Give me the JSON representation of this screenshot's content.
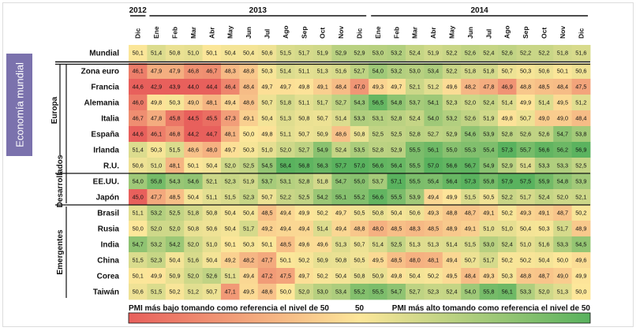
{
  "side_label": "Economía mundial",
  "chart_data": {
    "type": "heatmap",
    "title": "",
    "years": [
      {
        "label": "2012",
        "start": 0,
        "end": 0
      },
      {
        "label": "2013",
        "start": 1,
        "end": 12
      },
      {
        "label": "2014",
        "start": 13,
        "end": 24
      }
    ],
    "months": [
      "Dic",
      "Ene",
      "Feb",
      "Mar",
      "Abr",
      "May",
      "Jun",
      "Jul",
      "Ago",
      "Sep",
      "Oct",
      "Nov",
      "Dic",
      "Ene",
      "Feb",
      "Mar",
      "Abr",
      "May",
      "Jun",
      "Jul",
      "Ago",
      "Sep",
      "Oct",
      "Nov",
      "Dic"
    ],
    "groups": [
      {
        "label": "Europa",
        "rows": [
          1,
          6
        ]
      },
      {
        "label": "Desarrollados",
        "rows": [
          1,
          9
        ]
      },
      {
        "label": "Emergentes",
        "rows": [
          10,
          15
        ]
      }
    ],
    "rows": [
      {
        "name": "Mundial",
        "values": [
          "50,1",
          "51,4",
          "50,8",
          "51,0",
          "50,1",
          "50,4",
          "50,4",
          "50,6",
          "51,5",
          "51,7",
          "51,9",
          "52,9",
          "52,9",
          "53,0",
          "53,2",
          "52,4",
          "51,9",
          "52,2",
          "52,6",
          "52,4",
          "52,6",
          "52,2",
          "52,2",
          "51,8",
          "51,6"
        ]
      },
      {
        "name": "Zona euro",
        "values": [
          "46,1",
          "47,9",
          "47,9",
          "46,8",
          "46,7",
          "48,3",
          "48,8",
          "50,3",
          "51,4",
          "51,1",
          "51,3",
          "51,6",
          "52,7",
          "54,0",
          "53,2",
          "53,0",
          "53,4",
          "52,2",
          "51,8",
          "51,8",
          "50,7",
          "50,3",
          "50,6",
          "50,1",
          "50,6"
        ]
      },
      {
        "name": "Francia",
        "values": [
          "44,6",
          "42,9",
          "43,9",
          "44,0",
          "44,4",
          "46,4",
          "48,4",
          "49,7",
          "49,7",
          "49,8",
          "49,1",
          "48,4",
          "47,0",
          "49,3",
          "49,7",
          "52,1",
          "51,2",
          "49,6",
          "48,2",
          "47,8",
          "46,9",
          "48,8",
          "48,5",
          "48,4",
          "47,5"
        ]
      },
      {
        "name": "Alemania",
        "values": [
          "46,0",
          "49,8",
          "50,3",
          "49,0",
          "48,1",
          "49,4",
          "48,6",
          "50,7",
          "51,8",
          "51,1",
          "51,7",
          "52,7",
          "54,3",
          "56,5",
          "54,8",
          "53,7",
          "54,1",
          "52,3",
          "52,0",
          "52,4",
          "51,4",
          "49,9",
          "51,4",
          "49,5",
          "51,2"
        ]
      },
      {
        "name": "Italia",
        "values": [
          "46,7",
          "47,8",
          "45,8",
          "44,5",
          "45,5",
          "47,3",
          "49,1",
          "50,4",
          "51,3",
          "50,8",
          "50,7",
          "51,4",
          "53,3",
          "53,1",
          "52,8",
          "52,4",
          "54,0",
          "53,2",
          "52,6",
          "51,9",
          "49,8",
          "50,7",
          "49,0",
          "49,0",
          "48,4"
        ]
      },
      {
        "name": "España",
        "values": [
          "44,6",
          "46,1",
          "46,8",
          "44,2",
          "44,7",
          "48,1",
          "50,0",
          "49,8",
          "51,1",
          "50,7",
          "50,9",
          "48,6",
          "50,8",
          "52,5",
          "52,5",
          "52,8",
          "52,7",
          "52,9",
          "54,6",
          "53,9",
          "52,8",
          "52,6",
          "52,6",
          "54,7",
          "53,8"
        ]
      },
      {
        "name": "Irlanda",
        "values": [
          "51,4",
          "50,3",
          "51,5",
          "48,6",
          "48,0",
          "49,7",
          "50,3",
          "51,0",
          "52,0",
          "52,7",
          "54,9",
          "52,4",
          "53,5",
          "52,8",
          "52,9",
          "55,5",
          "56,1",
          "55,0",
          "55,3",
          "55,4",
          "57,3",
          "55,7",
          "56,6",
          "56,2",
          "56,9"
        ]
      },
      {
        "name": "R.U.",
        "values": [
          "50,6",
          "51,0",
          "48,1",
          "50,1",
          "50,4",
          "52,0",
          "52,5",
          "54,5",
          "58,4",
          "56,8",
          "56,3",
          "57,7",
          "57,0",
          "56,6",
          "56,4",
          "55,5",
          "57,0",
          "56,6",
          "56,7",
          "54,9",
          "52,9",
          "51,4",
          "53,3",
          "53,3",
          "52,5"
        ]
      },
      {
        "name": "EE.UU.",
        "values": [
          "54,0",
          "55,8",
          "54,3",
          "54,6",
          "52,1",
          "52,3",
          "51,9",
          "53,7",
          "53,1",
          "52,8",
          "51,8",
          "54,7",
          "55,0",
          "53,7",
          "57,1",
          "55,5",
          "55,4",
          "56,4",
          "57,3",
          "55,8",
          "57,9",
          "57,5",
          "55,9",
          "54,8",
          "53,9"
        ]
      },
      {
        "name": "Japón",
        "values": [
          "45,0",
          "47,7",
          "48,5",
          "50,4",
          "51,1",
          "51,5",
          "52,3",
          "50,7",
          "52,2",
          "52,5",
          "54,2",
          "55,1",
          "55,2",
          "56,6",
          "55,5",
          "53,9",
          "49,4",
          "49,9",
          "51,5",
          "50,5",
          "52,2",
          "51,7",
          "52,4",
          "52,0",
          "52,1"
        ]
      },
      {
        "name": "Brasil",
        "values": [
          "51,1",
          "53,2",
          "52,5",
          "51,8",
          "50,8",
          "50,4",
          "50,4",
          "48,5",
          "49,4",
          "49,9",
          "50,2",
          "49,7",
          "50,5",
          "50,8",
          "50,4",
          "50,6",
          "49,3",
          "48,8",
          "48,7",
          "49,1",
          "50,2",
          "49,3",
          "49,1",
          "48,7",
          "50,2"
        ]
      },
      {
        "name": "Rusia",
        "values": [
          "50,0",
          "52,0",
          "52,0",
          "50,8",
          "50,6",
          "50,4",
          "51,7",
          "49,2",
          "49,4",
          "49,4",
          "51,4",
          "49,4",
          "48,8",
          "48,0",
          "48,5",
          "48,3",
          "48,5",
          "48,9",
          "49,1",
          "51,0",
          "51,0",
          "50,4",
          "50,3",
          "51,7",
          "48,9"
        ]
      },
      {
        "name": "India",
        "values": [
          "54,7",
          "53,2",
          "54,2",
          "52,0",
          "51,0",
          "50,1",
          "50,3",
          "50,1",
          "48,5",
          "49,6",
          "49,6",
          "51,3",
          "50,7",
          "51,4",
          "52,5",
          "51,3",
          "51,3",
          "51,4",
          "51,5",
          "53,0",
          "52,4",
          "51,0",
          "51,6",
          "53,3",
          "54,5"
        ]
      },
      {
        "name": "China",
        "values": [
          "51,5",
          "52,3",
          "50,4",
          "51,6",
          "50,4",
          "49,2",
          "48,2",
          "47,7",
          "50,1",
          "50,2",
          "50,9",
          "50,8",
          "50,5",
          "49,5",
          "48,5",
          "48,0",
          "48,1",
          "49,4",
          "50,7",
          "51,7",
          "50,2",
          "50,2",
          "50,4",
          "50,0",
          "49,6"
        ]
      },
      {
        "name": "Corea",
        "values": [
          "50,1",
          "49,9",
          "50,9",
          "52,0",
          "52,6",
          "51,1",
          "49,4",
          "47,2",
          "47,5",
          "49,7",
          "50,2",
          "50,4",
          "50,8",
          "50,9",
          "49,8",
          "50,4",
          "50,2",
          "49,5",
          "48,4",
          "49,3",
          "50,3",
          "48,8",
          "48,7",
          "49,0",
          "49,9"
        ]
      },
      {
        "name": "Taiwán",
        "values": [
          "50,6",
          "51,5",
          "50,2",
          "51,2",
          "50,7",
          "47,1",
          "49,5",
          "48,6",
          "50,0",
          "52,0",
          "53,0",
          "53,4",
          "55,2",
          "55,5",
          "54,7",
          "52,7",
          "52,3",
          "52,4",
          "54,0",
          "55,8",
          "56,1",
          "53,3",
          "52,0",
          "51,3",
          "50,0"
        ]
      }
    ],
    "separators_after": [
      0,
      7,
      9
    ],
    "color_scale": {
      "min": 45,
      "mid": 50,
      "max": 57,
      "low_color": "#e8605c",
      "mid_color": "#fde79a",
      "high_color": "#59b25e"
    },
    "legend": {
      "low_text": "PMI más bajo tomando como referencia el nivel de 50",
      "mid_text": "50",
      "high_text": "PMI más alto tomando como referencia el nivel de 50"
    }
  }
}
